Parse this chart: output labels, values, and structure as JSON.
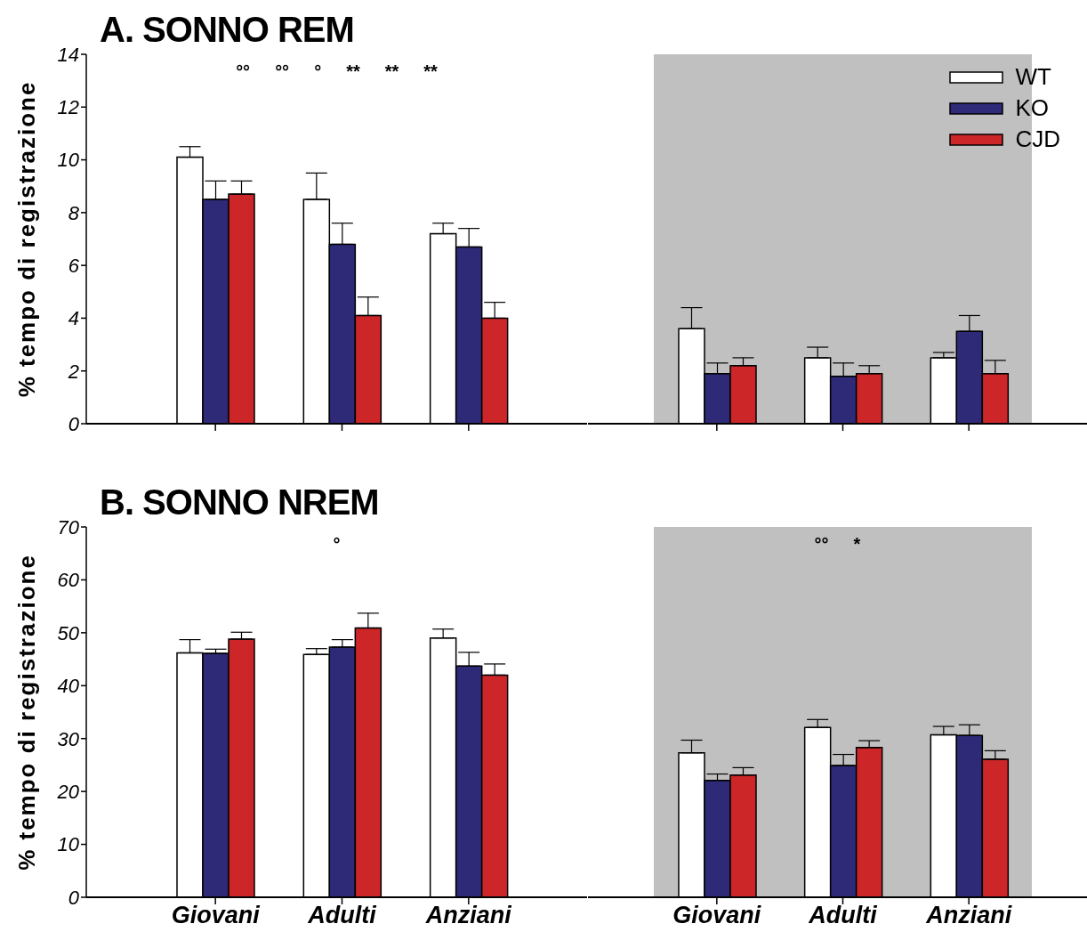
{
  "chart_data": [
    {
      "type": "bar",
      "title": "A. SONNO REM",
      "ylabel": "% tempo di registrazione",
      "categories": [
        "Giovani",
        "Adulti",
        "Anziani"
      ],
      "ylim": [
        0,
        14
      ],
      "yticks": [
        0,
        2,
        4,
        6,
        8,
        10,
        12,
        14
      ],
      "tick_labels": "y",
      "grid": false,
      "legend": false,
      "series": [
        {
          "color": "#ffffff",
          "values": [
            10.1,
            8.5,
            7.2
          ],
          "errors": [
            [
              10.1,
              10.5
            ],
            [
              8.5,
              9.5
            ],
            [
              7.2,
              7.6
            ]
          ]
        },
        {
          "color": "#2e2a78",
          "values": [
            8.5,
            6.8,
            6.7
          ],
          "errors": [
            [
              8.5,
              9.2
            ],
            [
              6.8,
              7.6
            ],
            [
              6.7,
              7.4
            ]
          ]
        },
        {
          "color": "#cc2629",
          "values": [
            8.7,
            4.1,
            4.0
          ],
          "errors": [
            [
              8.7,
              9.2
            ],
            [
              4.1,
              4.8
            ],
            [
              4.0,
              4.6
            ]
          ]
        }
      ],
      "annotations": [
        "°°",
        "°°",
        "°",
        "**",
        "**",
        "**"
      ]
    },
    {
      "type": "bar",
      "categories": [
        "Giovani",
        "Adulti",
        "Anziani"
      ],
      "ylim": [
        0,
        14
      ],
      "yticks": [
        0,
        2,
        4,
        6,
        8,
        10,
        12,
        14
      ],
      "tick_labels": false,
      "grid": false,
      "legend": "top right",
      "bands": [
        {
          "axis": "x",
          "from": "Giovani",
          "to": "Anziani",
          "color": "#c0c0c0"
        }
      ],
      "series": [
        {
          "name": "WT",
          "color": "#ffffff",
          "values": [
            3.6,
            2.5,
            2.5
          ],
          "errors": [
            [
              3.6,
              4.4
            ],
            [
              2.5,
              2.9
            ],
            [
              2.5,
              2.7
            ]
          ]
        },
        {
          "name": "KO",
          "color": "#2e2a78",
          "values": [
            1.9,
            1.8,
            3.5
          ],
          "errors": [
            [
              1.9,
              2.3
            ],
            [
              1.8,
              2.3
            ],
            [
              3.5,
              4.1
            ]
          ]
        },
        {
          "name": "CJD",
          "color": "#cc2629",
          "values": [
            2.2,
            1.9,
            1.9
          ],
          "errors": [
            [
              2.2,
              2.5
            ],
            [
              1.9,
              2.2
            ],
            [
              1.9,
              2.4
            ]
          ]
        }
      ]
    },
    {
      "type": "bar",
      "title": "B. SONNO NREM",
      "ylabel": "% tempo di registrazione",
      "categories": [
        "Giovani",
        "Adulti",
        "Anziani"
      ],
      "ylim": [
        0,
        70
      ],
      "yticks": [
        0,
        10,
        20,
        30,
        40,
        50,
        60,
        70
      ],
      "grid": false,
      "legend": false,
      "series": [
        {
          "color": "#ffffff",
          "values": [
            46.2,
            45.9,
            49.0
          ],
          "errors": [
            [
              46.2,
              48.7
            ],
            [
              45.9,
              47.0
            ],
            [
              49.0,
              50.7
            ]
          ]
        },
        {
          "color": "#2e2a78",
          "values": [
            46.1,
            47.3,
            43.7
          ],
          "errors": [
            [
              46.1,
              46.9
            ],
            [
              47.3,
              48.7
            ],
            [
              43.7,
              46.3
            ]
          ]
        },
        {
          "color": "#cc2629",
          "values": [
            48.8,
            50.9,
            42.0
          ],
          "errors": [
            [
              48.8,
              50.1
            ],
            [
              50.9,
              53.7
            ],
            [
              42.0,
              44.1
            ]
          ]
        }
      ],
      "annotations": [
        "°"
      ]
    },
    {
      "type": "bar",
      "categories": [
        "Giovani",
        "Adulti",
        "Anziani"
      ],
      "ylim": [
        0,
        70
      ],
      "yticks": [
        0,
        10,
        20,
        30,
        40,
        50,
        60,
        70
      ],
      "tick_labels": "x",
      "grid": false,
      "legend": false,
      "bands": [
        {
          "axis": "x",
          "from": "Giovani",
          "to": "Anziani",
          "color": "#c0c0c0"
        }
      ],
      "series": [
        {
          "color": "#ffffff",
          "values": [
            27.3,
            32.1,
            30.7
          ],
          "errors": [
            [
              27.3,
              29.7
            ],
            [
              32.1,
              33.6
            ],
            [
              30.7,
              32.3
            ]
          ]
        },
        {
          "color": "#2e2a78",
          "values": [
            22.1,
            24.9,
            30.6
          ],
          "errors": [
            [
              22.1,
              23.3
            ],
            [
              24.9,
              27.0
            ],
            [
              30.6,
              32.6
            ]
          ]
        },
        {
          "color": "#cc2629",
          "values": [
            23.1,
            28.3,
            26.1
          ],
          "errors": [
            [
              23.1,
              24.5
            ],
            [
              28.3,
              29.6
            ],
            [
              26.1,
              27.7
            ]
          ]
        }
      ],
      "annotations": [
        "°°",
        "*"
      ]
    }
  ]
}
